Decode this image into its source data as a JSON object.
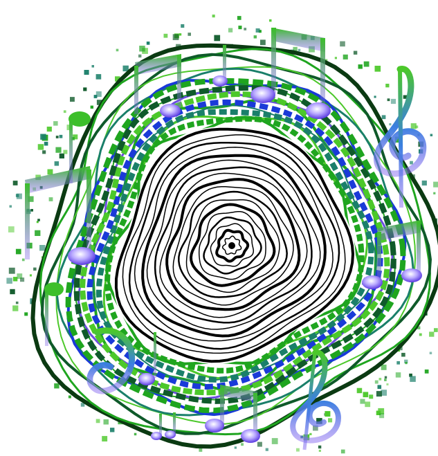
{
  "artwork": {
    "subject": "tree-ring-music-notes",
    "colors": {
      "background": "#ffffff",
      "core_rings": "#000000",
      "green": "#1fa51f",
      "lime": "#4cc82a",
      "dark_green": "#0f5a2a",
      "teal": "#1a7f6a",
      "blue": "#1a3ad8",
      "violet": "#6b4de0",
      "outline": "#0b3a12"
    },
    "ring_counts": {
      "inner_black_rings": 18,
      "outer_colored_rings": 12
    },
    "icons": [
      "treble-clef-icon",
      "beamed-eighth-notes-icon",
      "eighth-note-icon",
      "quarter-note-icon"
    ]
  }
}
